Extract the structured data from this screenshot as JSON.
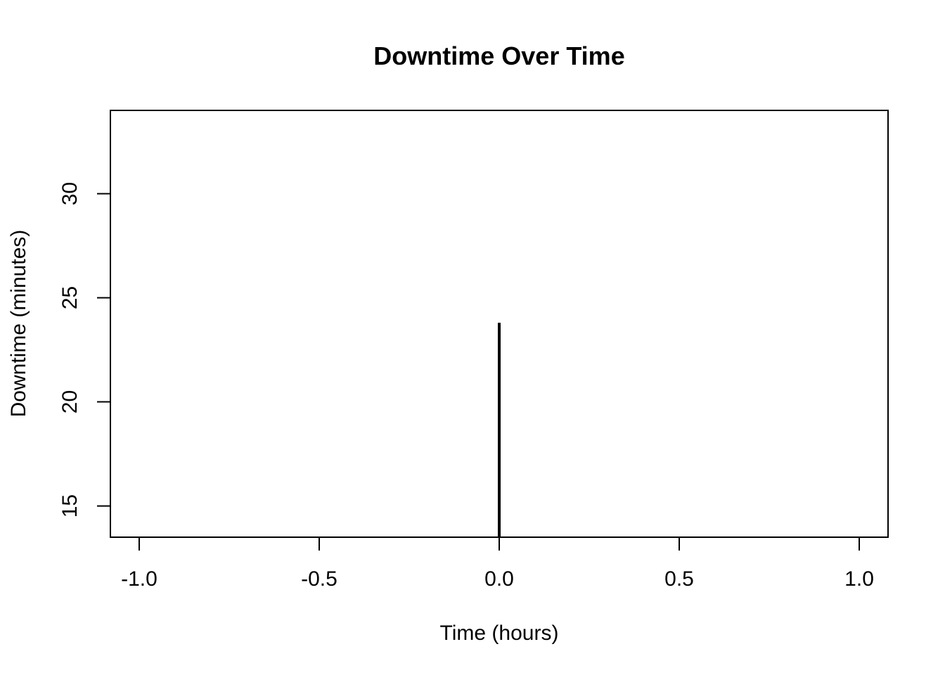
{
  "chart_data": {
    "type": "histogram",
    "title": "Downtime Over Time",
    "xlabel": "Time (hours)",
    "ylabel": "Downtime (minutes)",
    "xlim": [
      -1.08,
      1.08
    ],
    "ylim": [
      13.5,
      34
    ],
    "x_ticks": [
      -1.0,
      -0.5,
      0.0,
      0.5,
      1.0
    ],
    "x_tick_labels": [
      "-1.0",
      "-0.5",
      "0.0",
      "0.5",
      "1.0"
    ],
    "y_ticks": [
      15,
      20,
      25,
      30
    ],
    "y_tick_labels": [
      "15",
      "20",
      "25",
      "30"
    ],
    "points": [
      {
        "x": 0.0,
        "y": 23.8
      }
    ],
    "line_color": "#000000",
    "grid": false,
    "legend": "none"
  }
}
